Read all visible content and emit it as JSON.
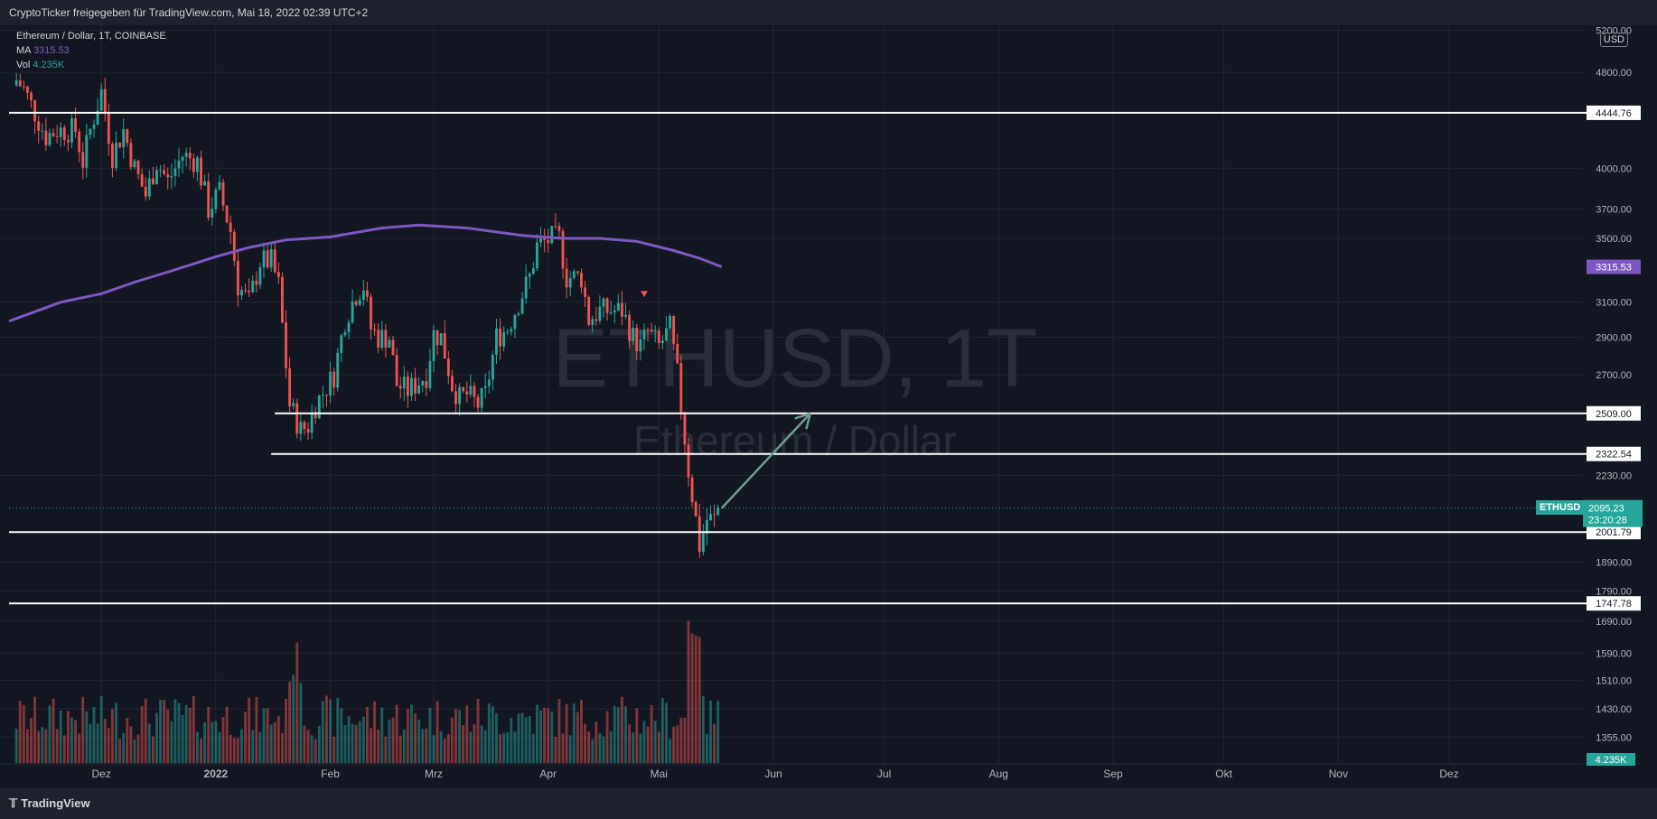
{
  "header": {
    "share_text": "CryptoTicker freigegeben für TradingView.com, Mai 18, 2022 02:39 UTC+2"
  },
  "footer": {
    "logo_text": "TradingView"
  },
  "legend": {
    "symbol_line": "Ethereum / Dollar, 1T, COINBASE",
    "ma_label": "MA",
    "ma_value": "3315.53",
    "vol_label": "Vol",
    "vol_value": "4.235K"
  },
  "currency": "USD",
  "watermark": {
    "symbol": "ETHUSD, 1T",
    "name": "Ethereum / Dollar"
  },
  "ticker_tag": "ETHUSD",
  "colors": {
    "up": "#26a69a",
    "down": "#ef5350",
    "ma": "#7e57c2",
    "background": "#131722",
    "grid": "#232632",
    "arrow": "#6e9b8f",
    "level_line": "#ffffff"
  },
  "chart_data": {
    "type": "candlestick",
    "timeframe": "1T",
    "y_scale": "log",
    "ylim": [
      1290,
      5250
    ],
    "x_range": [
      "2021-11-06",
      "2022-12-25"
    ],
    "price_ticks": [
      5200,
      4800,
      4000,
      3700,
      3500,
      3100,
      2900,
      2700,
      2230,
      1890,
      1790,
      1690,
      1590,
      1510,
      1430,
      1355
    ],
    "month_ticks": [
      {
        "date": "2021-12-01",
        "label": "Dez"
      },
      {
        "date": "2022-01-01",
        "label": "2022"
      },
      {
        "date": "2022-02-01",
        "label": "Feb"
      },
      {
        "date": "2022-03-01",
        "label": "Mrz"
      },
      {
        "date": "2022-04-01",
        "label": "Apr"
      },
      {
        "date": "2022-05-01",
        "label": "Mai"
      },
      {
        "date": "2022-06-01",
        "label": "Jun"
      },
      {
        "date": "2022-07-01",
        "label": "Jul"
      },
      {
        "date": "2022-08-01",
        "label": "Aug"
      },
      {
        "date": "2022-09-01",
        "label": "Sep"
      },
      {
        "date": "2022-10-01",
        "label": "Okt"
      },
      {
        "date": "2022-11-01",
        "label": "Nov"
      },
      {
        "date": "2022-12-01",
        "label": "Dez"
      }
    ],
    "close_anchors": [
      [
        "2021-11-08",
        4730
      ],
      [
        "2021-11-10",
        4650
      ],
      [
        "2021-11-16",
        4250
      ],
      [
        "2021-11-19",
        4300
      ],
      [
        "2021-11-24",
        4300
      ],
      [
        "2021-11-26",
        4050
      ],
      [
        "2021-11-28",
        4300
      ],
      [
        "2021-12-01",
        4630
      ],
      [
        "2021-12-04",
        4100
      ],
      [
        "2021-12-07",
        4300
      ],
      [
        "2021-12-10",
        4000
      ],
      [
        "2021-12-13",
        3800
      ],
      [
        "2021-12-16",
        4050
      ],
      [
        "2021-12-19",
        3900
      ],
      [
        "2021-12-23",
        4100
      ],
      [
        "2021-12-27",
        4050
      ],
      [
        "2021-12-30",
        3700
      ],
      [
        "2022-01-02",
        3820
      ],
      [
        "2022-01-05",
        3550
      ],
      [
        "2022-01-07",
        3200
      ],
      [
        "2022-01-10",
        3100
      ],
      [
        "2022-01-13",
        3350
      ],
      [
        "2022-01-16",
        3350
      ],
      [
        "2022-01-18",
        3200
      ],
      [
        "2022-01-21",
        2550
      ],
      [
        "2022-01-24",
        2430
      ],
      [
        "2022-01-26",
        2450
      ],
      [
        "2022-01-28",
        2550
      ],
      [
        "2022-02-02",
        2700
      ],
      [
        "2022-02-05",
        3000
      ],
      [
        "2022-02-08",
        3150
      ],
      [
        "2022-02-10",
        3200
      ],
      [
        "2022-02-12",
        2950
      ],
      [
        "2022-02-14",
        2900
      ],
      [
        "2022-02-17",
        2900
      ],
      [
        "2022-02-19",
        2650
      ],
      [
        "2022-02-22",
        2620
      ],
      [
        "2022-02-24",
        2650
      ],
      [
        "2022-02-27",
        2700
      ],
      [
        "2022-03-01",
        2920
      ],
      [
        "2022-03-03",
        2900
      ],
      [
        "2022-03-06",
        2650
      ],
      [
        "2022-03-08",
        2580
      ],
      [
        "2022-03-10",
        2600
      ],
      [
        "2022-03-13",
        2550
      ],
      [
        "2022-03-15",
        2600
      ],
      [
        "2022-03-18",
        2900
      ],
      [
        "2022-03-21",
        2950
      ],
      [
        "2022-03-24",
        3100
      ],
      [
        "2022-03-27",
        3250
      ],
      [
        "2022-03-29",
        3450
      ],
      [
        "2022-04-02",
        3500
      ],
      [
        "2022-04-04",
        3500
      ],
      [
        "2022-04-06",
        3250
      ],
      [
        "2022-04-10",
        3250
      ],
      [
        "2022-04-12",
        3000
      ],
      [
        "2022-04-15",
        3050
      ],
      [
        "2022-04-18",
        3050
      ],
      [
        "2022-04-21",
        3050
      ],
      [
        "2022-04-24",
        2900
      ],
      [
        "2022-04-26",
        2850
      ],
      [
        "2022-04-28",
        2930
      ],
      [
        "2022-05-01",
        2850
      ],
      [
        "2022-05-04",
        2950
      ],
      [
        "2022-05-06",
        2700
      ],
      [
        "2022-05-09",
        2250
      ],
      [
        "2022-05-11",
        2050
      ],
      [
        "2022-05-12",
        1950
      ],
      [
        "2022-05-14",
        2050
      ],
      [
        "2022-05-16",
        2050
      ],
      [
        "2022-05-17",
        2095
      ]
    ],
    "ma_curve": [
      [
        "2021-11-06",
        2990
      ],
      [
        "2021-11-20",
        3100
      ],
      [
        "2021-12-01",
        3150
      ],
      [
        "2021-12-10",
        3220
      ],
      [
        "2021-12-20",
        3290
      ],
      [
        "2022-01-01",
        3380
      ],
      [
        "2022-01-10",
        3440
      ],
      [
        "2022-01-20",
        3490
      ],
      [
        "2022-02-01",
        3510
      ],
      [
        "2022-02-15",
        3570
      ],
      [
        "2022-02-25",
        3590
      ],
      [
        "2022-03-10",
        3570
      ],
      [
        "2022-03-25",
        3520
      ],
      [
        "2022-04-05",
        3500
      ],
      [
        "2022-04-15",
        3500
      ],
      [
        "2022-04-25",
        3480
      ],
      [
        "2022-05-05",
        3420
      ],
      [
        "2022-05-12",
        3370
      ],
      [
        "2022-05-18",
        3315.53
      ]
    ],
    "volume_ylim": [
      0,
      5000
    ],
    "horizontal_levels": [
      {
        "price": 4444.76,
        "label": "4444.76",
        "from": "2021-11-06"
      },
      {
        "price": 2509.0,
        "label": "2509.00",
        "from": "2022-01-17"
      },
      {
        "price": 2322.54,
        "label": "2322.54",
        "from": "2022-01-16"
      },
      {
        "price": 2001.79,
        "label": "2001.79",
        "from": "2021-11-06"
      },
      {
        "price": 1747.78,
        "label": "1747.78",
        "from": "2021-11-06"
      }
    ],
    "current_price": {
      "value": 2095.23,
      "label": "2095.23",
      "countdown": "23:20:28"
    },
    "ma_label": {
      "value": 3315.53,
      "label": "3315.53"
    },
    "volume_label": "4.235K",
    "arrow": {
      "from": [
        "2022-05-18",
        2095
      ],
      "to": [
        "2022-06-11",
        2509
      ]
    },
    "marker": {
      "date": "2022-04-27",
      "price": 3140
    }
  }
}
